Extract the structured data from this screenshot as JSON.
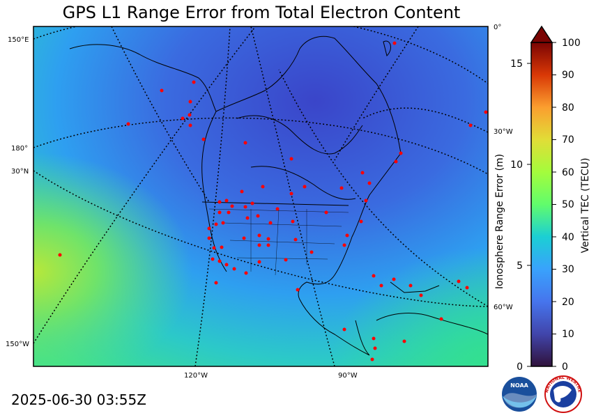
{
  "title": "GPS L1 Range Error from Total Electron Content",
  "timestamp": "2025-06-30 03:55Z",
  "map": {
    "longitude_labels": [
      "150°E",
      "180°",
      "30°N",
      "150°W",
      "120°W",
      "90°W",
      "0°",
      "30°W",
      "60°W"
    ],
    "station_color": "#ff0000",
    "colors": {
      "low_tec": "#3b4ad0",
      "mid_tec": "#2ea6f0",
      "high_tec": "#4fe08a",
      "peak_tec": "#b5e83a"
    }
  },
  "colorbar": {
    "left_label": "Ionosphere Range Error (m)",
    "right_label": "Vertical TEC (TECU)",
    "left_ticks": [
      "0",
      "5",
      "10",
      "15"
    ],
    "right_ticks": [
      "0",
      "10",
      "20",
      "30",
      "40",
      "50",
      "60",
      "70",
      "80",
      "90",
      "100"
    ]
  },
  "logos": {
    "noaa": "NOAA",
    "nws": "NATIONAL WEATHER SERVICE"
  }
}
